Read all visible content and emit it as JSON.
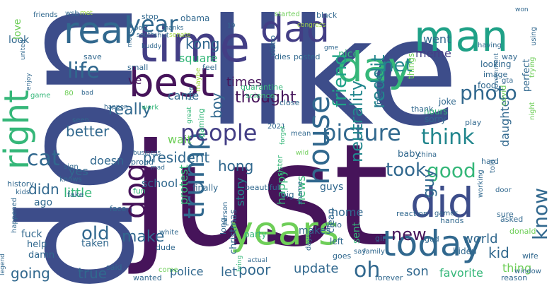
{
  "palette": {
    "deep_purple": "#46145a",
    "indigo": "#433e85",
    "slate_blue": "#3d5a8c",
    "steel_blue": "#31688e",
    "teal": "#22868d",
    "sea_green": "#1fa187",
    "green": "#35b779",
    "light_green": "#6ece58",
    "lime": "#a0d940"
  },
  "words": [
    {
      "text": "like",
      "color": "#3d4d8a"
    },
    {
      "text": "just",
      "color": "#46145a"
    },
    {
      "text": "don",
      "color": "#3d4d8a"
    },
    {
      "text": "time",
      "color": "#433e85"
    },
    {
      "text": "best",
      "color": "#46145a"
    },
    {
      "text": "man",
      "color": "#1fa187"
    },
    {
      "text": "dad",
      "color": "#433e85"
    },
    {
      "text": "day",
      "color": "#35b779"
    },
    {
      "text": "real",
      "color": "#31688e"
    },
    {
      "text": "years",
      "color": "#6ece58"
    },
    {
      "text": "today",
      "color": "#31688e"
    },
    {
      "text": "did",
      "color": "#3d4d8a"
    },
    {
      "text": "right",
      "color": "#35b779"
    },
    {
      "text": "house",
      "color": "#31688e"
    },
    {
      "text": "trump",
      "color": "#31688e"
    },
    {
      "text": "dog",
      "color": "#46145a"
    },
    {
      "text": "people",
      "color": "#433e85"
    },
    {
      "text": "picture",
      "color": "#31688e"
    },
    {
      "text": "year",
      "color": "#31688e"
    },
    {
      "text": "life",
      "color": "#31688e"
    },
    {
      "text": "friend",
      "color": "#1fa187"
    },
    {
      "text": "think",
      "color": "#22868d"
    },
    {
      "text": "good",
      "color": "#35b779"
    },
    {
      "text": "photo",
      "color": "#31688e"
    },
    {
      "text": "know",
      "color": "#31688e"
    },
    {
      "text": "reddit",
      "color": "#22868d"
    },
    {
      "text": "neutrality",
      "color": "#22868d"
    },
    {
      "text": "net",
      "color": "#22868d"
    },
    {
      "text": "thought",
      "color": "#46145a"
    },
    {
      "text": "guy",
      "color": "#31688e"
    },
    {
      "text": "took",
      "color": "#31688e"
    },
    {
      "text": "really",
      "color": "#31688e"
    },
    {
      "text": "cat",
      "color": "#31688e"
    },
    {
      "text": "boy",
      "color": "#31688e"
    },
    {
      "text": "oh",
      "color": "#31688e"
    },
    {
      "text": "new",
      "color": "#46145a"
    },
    {
      "text": "old",
      "color": "#31688e"
    },
    {
      "text": "make",
      "color": "#31688e"
    },
    {
      "text": "president",
      "color": "#31688e"
    },
    {
      "text": "kong",
      "color": "#31688e"
    },
    {
      "text": "hong",
      "color": "#31688e"
    },
    {
      "text": "square",
      "color": "#35b779"
    },
    {
      "text": "meme",
      "color": "#433e85"
    },
    {
      "text": "went",
      "color": "#31688e"
    },
    {
      "text": "came",
      "color": "#31688e"
    },
    {
      "text": "times",
      "color": "#46145a"
    },
    {
      "text": "better",
      "color": "#31688e"
    },
    {
      "text": "wait",
      "color": "#6ece58"
    },
    {
      "text": "yes",
      "color": "#31688e"
    },
    {
      "text": "didn",
      "color": "#31688e"
    },
    {
      "text": "little",
      "color": "#35b779"
    },
    {
      "text": "going",
      "color": "#31688e"
    },
    {
      "text": "true",
      "color": "#31688e"
    },
    {
      "text": "protest",
      "color": "#35b779"
    },
    {
      "text": "school",
      "color": "#31688e"
    },
    {
      "text": "doesn",
      "color": "#31688e"
    },
    {
      "text": "story",
      "color": "#22868d"
    },
    {
      "text": "happy",
      "color": "#35b779"
    },
    {
      "text": "news",
      "color": "#35b779"
    },
    {
      "text": "home",
      "color": "#31688e"
    },
    {
      "text": "let",
      "color": "#31688e"
    },
    {
      "text": "poor",
      "color": "#31688e"
    },
    {
      "text": "update",
      "color": "#31688e"
    },
    {
      "text": "son",
      "color": "#31688e"
    },
    {
      "text": "favorite",
      "color": "#35b779"
    },
    {
      "text": "kid",
      "color": "#31688e"
    },
    {
      "text": "world",
      "color": "#31688e"
    },
    {
      "text": "thing",
      "color": "#6ece58"
    },
    {
      "text": "police",
      "color": "#31688e"
    },
    {
      "text": "daughter",
      "color": "#31688e"
    },
    {
      "text": "guys",
      "color": "#31688e"
    },
    {
      "text": "makes",
      "color": "#31688e"
    },
    {
      "text": "ve",
      "color": "#46145a"
    },
    {
      "text": "internet",
      "color": "#31688e"
    },
    {
      "text": "nice",
      "color": "#35b779"
    },
    {
      "text": "look",
      "color": "#31688e"
    },
    {
      "text": "love",
      "color": "#6ece58"
    },
    {
      "text": "perfect",
      "color": "#31688e"
    },
    {
      "text": "things",
      "color": "#6ece58"
    },
    {
      "text": "obama",
      "color": "#31688e"
    },
    {
      "text": "stop",
      "color": "#31688e"
    },
    {
      "text": "friends",
      "color": "#31688e"
    },
    {
      "text": "wsb",
      "color": "#31688e"
    },
    {
      "text": "met",
      "color": "#a0d940"
    },
    {
      "text": "started",
      "color": "#6ece58"
    },
    {
      "text": "black",
      "color": "#31688e"
    },
    {
      "text": "won",
      "color": "#31688e"
    },
    {
      "text": "congress",
      "color": "#a0d940"
    },
    {
      "text": "gme",
      "color": "#31688e"
    },
    {
      "text": "united",
      "color": "#31688e"
    },
    {
      "text": "video",
      "color": "#31688e"
    },
    {
      "text": "dies",
      "color": "#31688e"
    },
    {
      "text": "posted",
      "color": "#31688e"
    },
    {
      "text": "feel",
      "color": "#31688e"
    },
    {
      "text": "save",
      "color": "#31688e"
    },
    {
      "text": "small",
      "color": "#31688e"
    },
    {
      "text": "quarantine",
      "color": "#35b779"
    },
    {
      "text": "science",
      "color": "#35b779"
    },
    {
      "text": "ago",
      "color": "#31688e"
    },
    {
      "text": "fuck",
      "color": "#31688e"
    },
    {
      "text": "help",
      "color": "#31688e"
    },
    {
      "text": "damn",
      "color": "#31688e"
    },
    {
      "text": "taken",
      "color": "#31688e"
    },
    {
      "text": "christmas",
      "color": "#31688e"
    },
    {
      "text": "finally",
      "color": "#31688e"
    },
    {
      "text": "clean",
      "color": "#31688e"
    },
    {
      "text": "left",
      "color": "#31688e"
    },
    {
      "text": "beautiful",
      "color": "#31688e"
    },
    {
      "text": "fun",
      "color": "#35b779"
    },
    {
      "text": "face",
      "color": "#31688e"
    },
    {
      "text": "fake",
      "color": "#31688e"
    },
    {
      "text": "history",
      "color": "#31688e"
    },
    {
      "text": "kids",
      "color": "#31688e"
    },
    {
      "text": "happened",
      "color": "#31688e"
    },
    {
      "text": "biden",
      "color": "#31688e"
    },
    {
      "text": "god",
      "color": "#31688e"
    },
    {
      "text": "girl",
      "color": "#31688e"
    },
    {
      "text": "sent",
      "color": "#35b779"
    },
    {
      "text": "goes",
      "color": "#31688e"
    },
    {
      "text": "party",
      "color": "#35b779"
    },
    {
      "text": "dude",
      "color": "#31688e"
    },
    {
      "text": "said",
      "color": "#31688e"
    },
    {
      "text": "white",
      "color": "#31688e"
    },
    {
      "text": "wanted",
      "color": "#31688e"
    },
    {
      "text": "come",
      "color": "#6ece58"
    },
    {
      "text": "forever",
      "color": "#31688e"
    },
    {
      "text": "reason",
      "color": "#31688e"
    },
    {
      "text": "family",
      "color": "#31688e"
    },
    {
      "text": "say",
      "color": "#31688e"
    },
    {
      "text": "days",
      "color": "#31688e"
    },
    {
      "text": "bring",
      "color": "#35b779"
    },
    {
      "text": "actual",
      "color": "#31688e"
    },
    {
      "text": "wife",
      "color": "#31688e"
    },
    {
      "text": "legend",
      "color": "#31688e"
    },
    {
      "text": "window",
      "color": "#31688e"
    },
    {
      "text": "hands",
      "color": "#31688e"
    },
    {
      "text": "gamer",
      "color": "#31688e"
    },
    {
      "text": "working",
      "color": "#31688e"
    },
    {
      "text": "reaction",
      "color": "#31688e"
    },
    {
      "text": "asked",
      "color": "#31688e"
    },
    {
      "text": "donald",
      "color": "#6ece58"
    },
    {
      "text": "yolo",
      "color": "#31688e"
    },
    {
      "text": "shame",
      "color": "#31688e"
    },
    {
      "text": "long",
      "color": "#31688e"
    },
    {
      "text": "person",
      "color": "#31688e"
    },
    {
      "text": "big",
      "color": "#31688e"
    },
    {
      "text": "sister",
      "color": "#35b779"
    },
    {
      "text": "baby",
      "color": "#31688e"
    },
    {
      "text": "china",
      "color": "#31688e"
    },
    {
      "text": "hard",
      "color": "#31688e"
    },
    {
      "text": "told",
      "color": "#31688e"
    },
    {
      "text": "door",
      "color": "#31688e"
    },
    {
      "text": "sure",
      "color": "#31688e"
    },
    {
      "text": "play",
      "color": "#31688e"
    },
    {
      "text": "sorry",
      "color": "#31688e"
    },
    {
      "text": "hours",
      "color": "#35b779"
    },
    {
      "text": "joke",
      "color": "#31688e"
    },
    {
      "text": "thank",
      "color": "#31688e"
    },
    {
      "text": "covid",
      "color": "#6ece58"
    },
    {
      "text": "gta",
      "color": "#31688e"
    },
    {
      "text": "night",
      "color": "#6ece58"
    },
    {
      "text": "food",
      "color": "#31688e"
    },
    {
      "text": "image",
      "color": "#31688e"
    },
    {
      "text": "looking",
      "color": "#31688e"
    },
    {
      "text": "way",
      "color": "#31688e"
    },
    {
      "text": "having",
      "color": "#31688e"
    },
    {
      "text": "using",
      "color": "#31688e"
    },
    {
      "text": "trying",
      "color": "#6ece58"
    },
    {
      "text": "government",
      "color": "#31688e"
    },
    {
      "text": "close",
      "color": "#31688e"
    },
    {
      "text": "mean",
      "color": "#31688e"
    },
    {
      "text": "wild",
      "color": "#6ece58"
    },
    {
      "text": "2021",
      "color": "#31688e"
    },
    {
      "text": "forget",
      "color": "#35b779"
    },
    {
      "text": "maybe",
      "color": "#a0d940"
    },
    {
      "text": "free",
      "color": "#31688e"
    },
    {
      "text": "gaming",
      "color": "#35b779"
    },
    {
      "text": "great",
      "color": "#35b779"
    },
    {
      "text": "business",
      "color": "#31688e"
    },
    {
      "text": "proud",
      "color": "#31688e"
    },
    {
      "text": "mad",
      "color": "#31688e"
    },
    {
      "text": "work",
      "color": "#35b779"
    },
    {
      "text": "happen",
      "color": "#31688e"
    },
    {
      "text": "sign",
      "color": "#31688e"
    },
    {
      "text": "knows",
      "color": "#31688e"
    },
    {
      "text": "seen",
      "color": "#31688e"
    },
    {
      "text": "game",
      "color": "#35b779"
    },
    {
      "text": "enjoy",
      "color": "#31688e"
    },
    {
      "text": "80",
      "color": "#6ece58"
    },
    {
      "text": "bad",
      "color": "#31688e"
    },
    {
      "text": "buddy",
      "color": "#31688e"
    },
    {
      "text": "money",
      "color": "#31688e"
    },
    {
      "text": "south",
      "color": "#31688e"
    },
    {
      "text": "post",
      "color": "#31688e"
    },
    {
      "text": "thanks",
      "color": "#31688e"
    },
    {
      "text": "shut",
      "color": "#31688e"
    },
    {
      "text": "senate",
      "color": "#a0d940"
    },
    {
      "text": "19",
      "color": "#31688e"
    }
  ]
}
